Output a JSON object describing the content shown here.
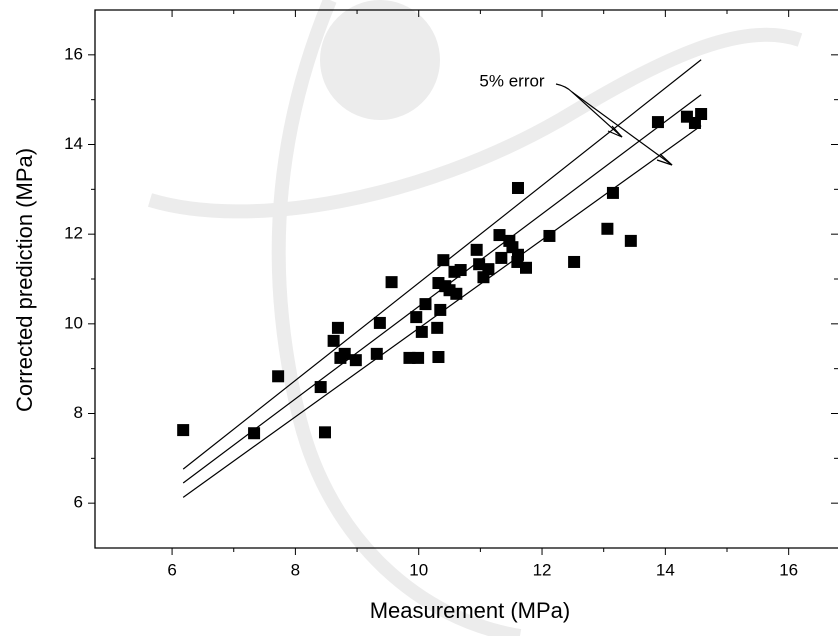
{
  "chart_data": {
    "type": "scatter",
    "xlabel": "Measurement (MPa)",
    "ylabel": "Corrected prediction (MPa)",
    "xlim": [
      4.75,
      16.8
    ],
    "ylim": [
      5,
      17
    ],
    "xticks": [
      6,
      8,
      10,
      12,
      14,
      16
    ],
    "yticks": [
      6,
      8,
      10,
      12,
      14,
      16
    ],
    "color": "#000000",
    "annotation": "5% error",
    "series": [
      {
        "name": "Corrected prediction",
        "color": "#000000",
        "x": [
          6.18,
          7.33,
          7.72,
          8.41,
          8.48,
          8.62,
          8.69,
          8.73,
          8.8,
          8.98,
          9.32,
          9.37,
          9.56,
          9.85,
          9.96,
          9.99,
          10.05,
          10.11,
          10.3,
          10.32,
          10.35,
          10.32,
          10.4,
          10.43,
          10.5,
          10.58,
          10.61,
          10.68,
          10.94,
          10.98,
          11.05,
          11.13,
          11.31,
          11.34,
          11.47,
          11.52,
          11.61,
          11.61,
          11.6,
          11.74,
          12.12,
          12.52,
          13.06,
          13.15,
          13.44,
          13.88,
          14.35,
          14.48,
          14.58
        ],
        "values": [
          7.63,
          7.56,
          8.83,
          8.59,
          7.58,
          9.62,
          9.91,
          9.24,
          9.33,
          9.19,
          9.33,
          10.02,
          10.93,
          9.24,
          10.15,
          9.24,
          9.82,
          10.44,
          9.91,
          9.26,
          10.31,
          10.91,
          11.42,
          10.84,
          10.75,
          11.16,
          10.67,
          11.2,
          11.65,
          11.33,
          11.04,
          11.22,
          11.98,
          11.47,
          11.85,
          11.71,
          13.03,
          11.54,
          11.38,
          11.25,
          11.96,
          11.38,
          12.12,
          12.92,
          11.85,
          14.5,
          14.62,
          14.48,
          14.68
        ]
      }
    ],
    "reference_lines": [
      {
        "x": [
          6.18,
          14.58
        ],
        "y": [
          6.76,
          15.89
        ]
      },
      {
        "x": [
          6.18,
          14.58
        ],
        "y": [
          6.45,
          15.11
        ]
      },
      {
        "x": [
          6.18,
          14.58
        ],
        "y": [
          6.13,
          14.42
        ]
      }
    ]
  }
}
